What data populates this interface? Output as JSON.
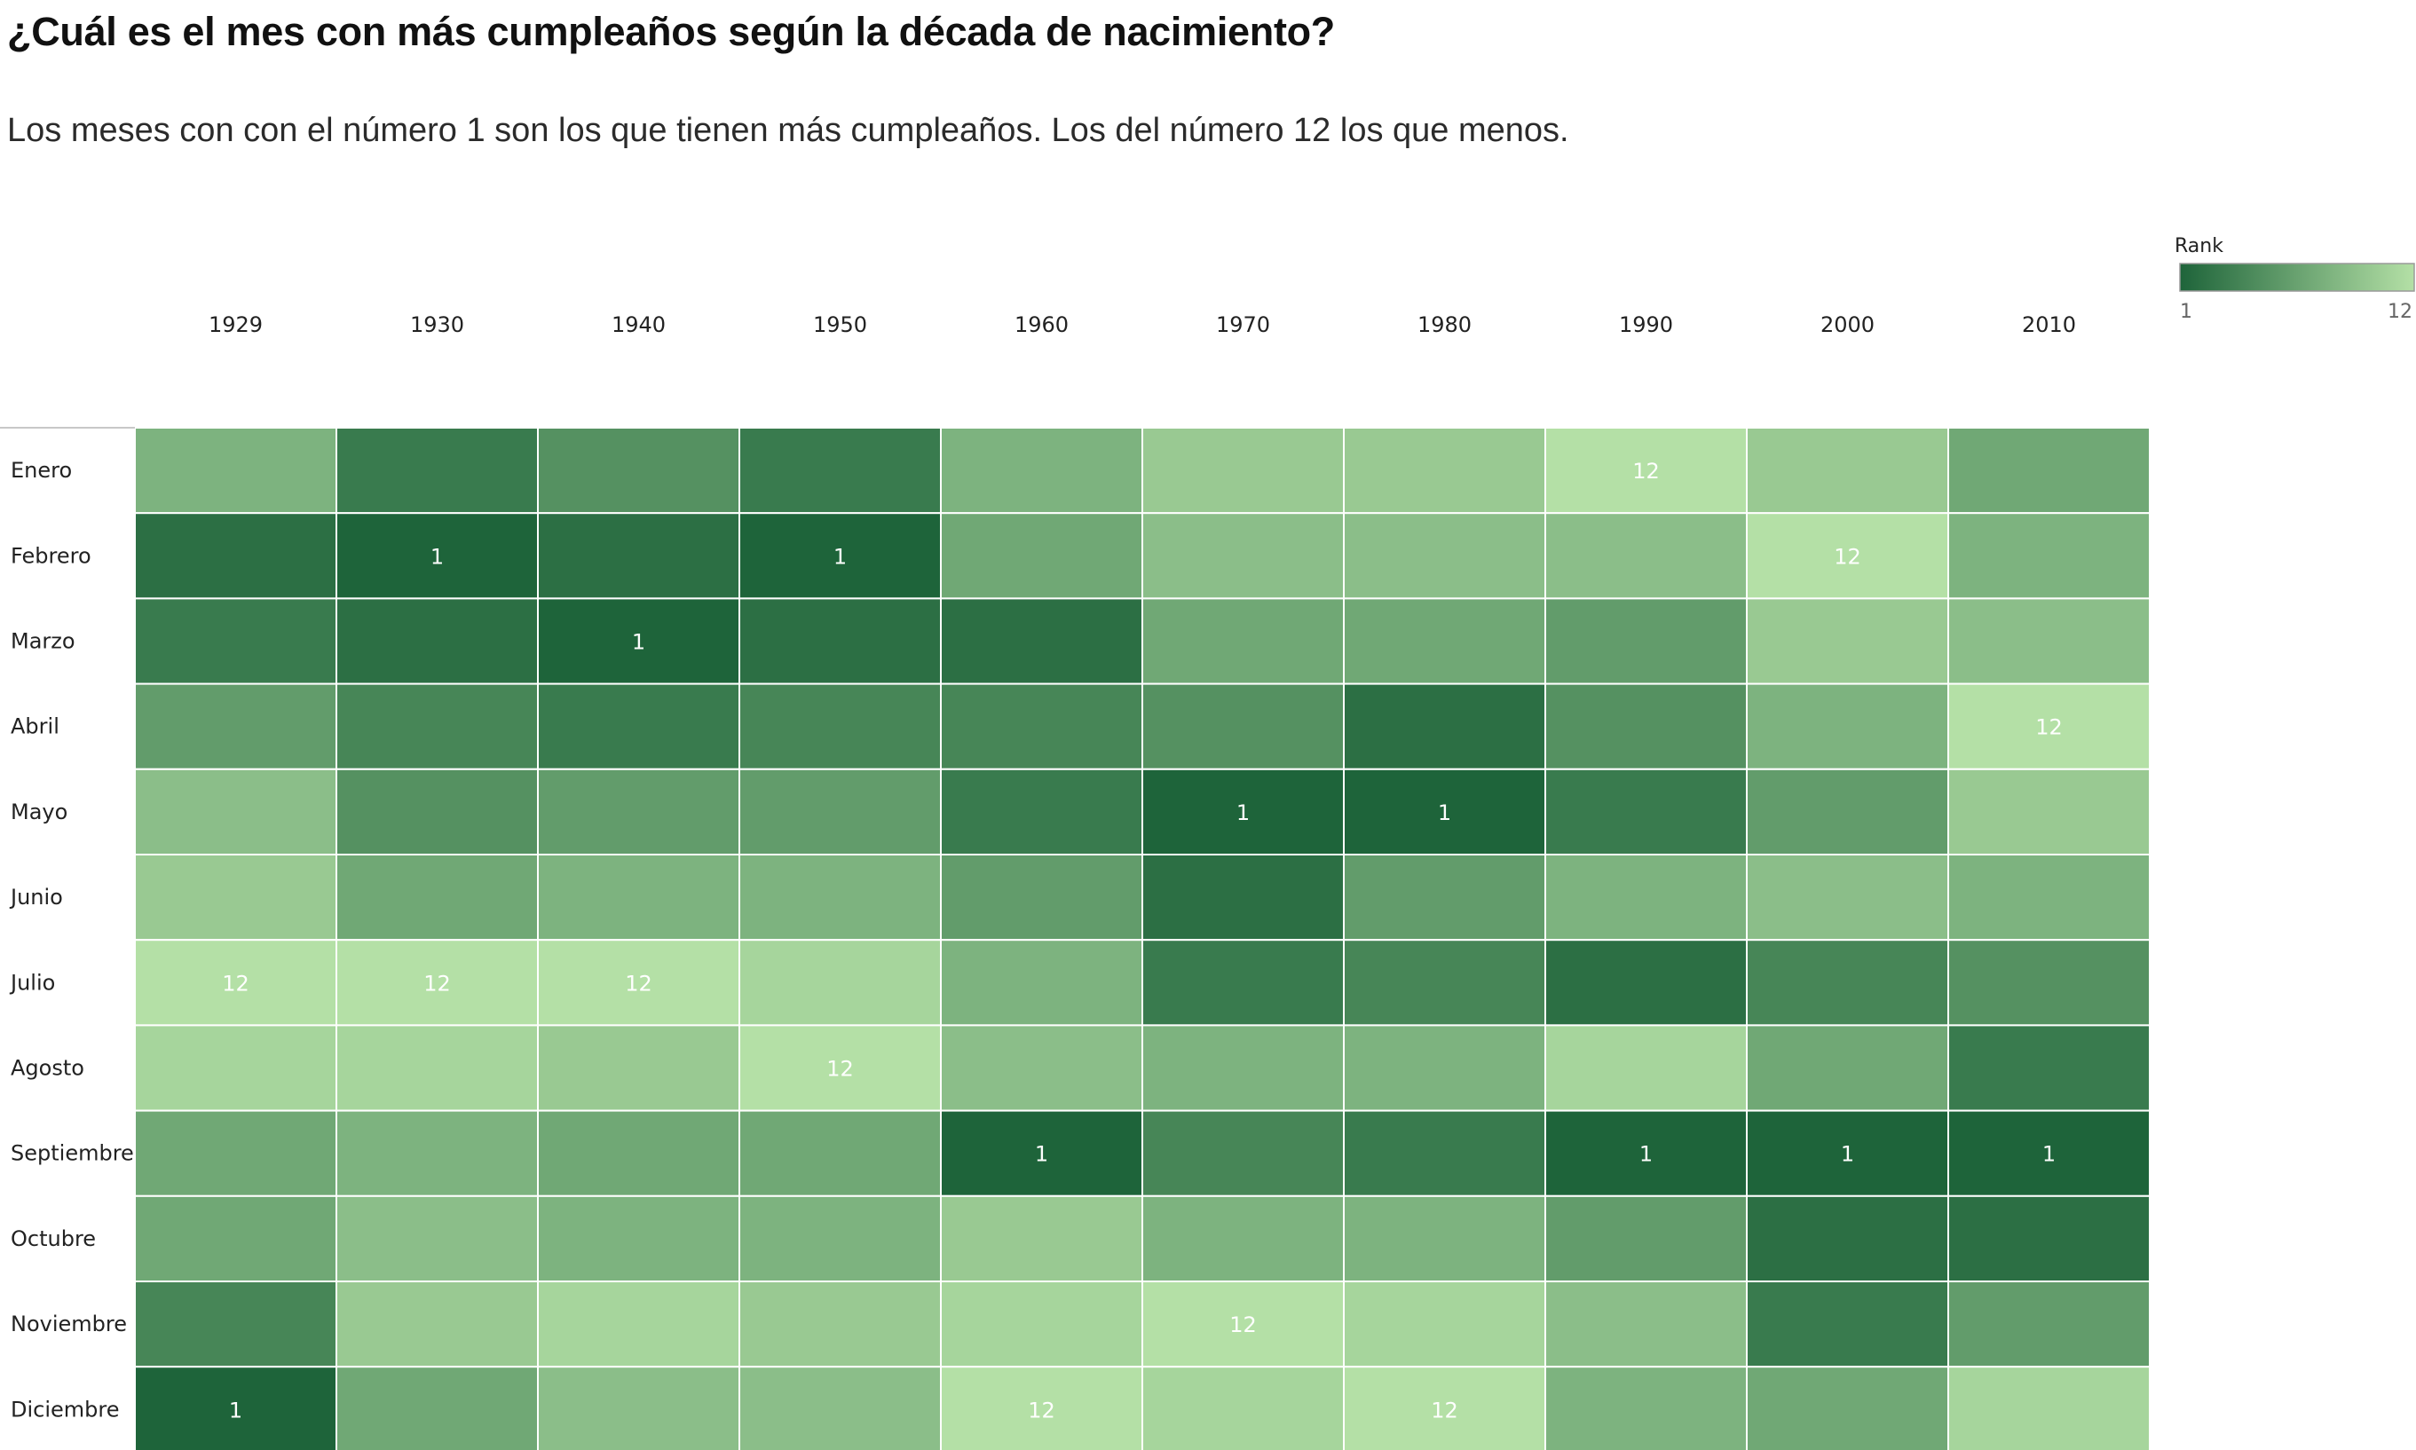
{
  "title": "¿Cuál es el mes con más cumpleaños según la década de nacimiento?",
  "subtitle": "Los meses con con el número 1 son los que tienen más cumpleaños. Los del número 12 los que menos.",
  "legend": {
    "title": "Rank",
    "min_label": "1",
    "max_label": "12"
  },
  "colors": {
    "rank_1": "#1e643a",
    "rank_12": "#b4e0a6",
    "grid": "#ffffff",
    "axis_line": "#c8c8c8"
  },
  "chart_data": {
    "type": "heatmap",
    "title": "¿Cuál es el mes con más cumpleaños según la década de nacimiento?",
    "subtitle": "Los meses con con el número 1 son los que tienen más cumpleaños. Los del número 12 los que menos.",
    "x": [
      "1929",
      "1930",
      "1940",
      "1950",
      "1960",
      "1970",
      "1980",
      "1990",
      "2000",
      "2010"
    ],
    "y": [
      "Enero",
      "Febrero",
      "Marzo",
      "Abril",
      "Mayo",
      "Junio",
      "Julio",
      "Agosto",
      "Septiembre",
      "Octubre",
      "Noviembre",
      "Diciembre"
    ],
    "values": [
      [
        8,
        3,
        5,
        3,
        8,
        10,
        10,
        12,
        10,
        7
      ],
      [
        2,
        1,
        2,
        1,
        7,
        9,
        9,
        9,
        12,
        8
      ],
      [
        3,
        2,
        1,
        2,
        2,
        7,
        7,
        6,
        10,
        9
      ],
      [
        6,
        4,
        3,
        4,
        4,
        5,
        2,
        5,
        8,
        12
      ],
      [
        9,
        5,
        6,
        6,
        3,
        1,
        1,
        3,
        6,
        10
      ],
      [
        10,
        7,
        8,
        8,
        6,
        2,
        6,
        8,
        9,
        8
      ],
      [
        12,
        12,
        12,
        11,
        8,
        3,
        4,
        2,
        4,
        5
      ],
      [
        11,
        11,
        10,
        12,
        9,
        8,
        8,
        11,
        7,
        3
      ],
      [
        7,
        8,
        7,
        7,
        1,
        4,
        3,
        1,
        1,
        1
      ],
      [
        7,
        9,
        8,
        8,
        10,
        8,
        8,
        6,
        2,
        2
      ],
      [
        4,
        10,
        11,
        10,
        11,
        12,
        11,
        9,
        3,
        6
      ],
      [
        1,
        7,
        9,
        9,
        12,
        11,
        12,
        8,
        7,
        11
      ]
    ],
    "labels_shown_for": [
      1,
      12
    ],
    "color_scale": {
      "field": "Rank",
      "domain": [
        1,
        12
      ],
      "colors": [
        "#1e643a",
        "#b4e0a6"
      ]
    },
    "legend_placement": "top-right"
  }
}
